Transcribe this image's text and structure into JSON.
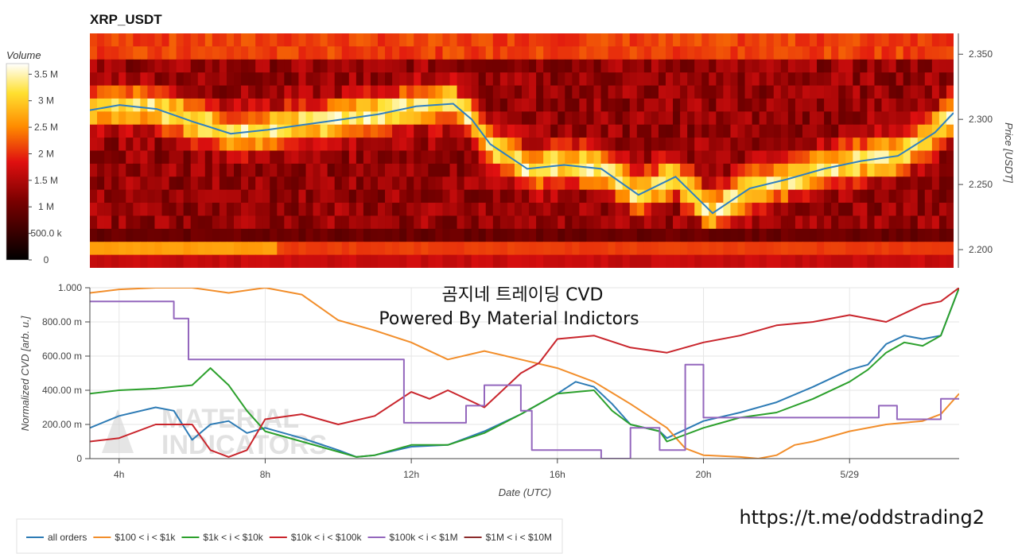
{
  "chart_data": [
    {
      "type": "heatmap",
      "title": "XRP_USDT",
      "ylabel": "Price [USDT]",
      "yticks": [
        "2.200",
        "2.250",
        "2.300",
        "2.350"
      ],
      "ylim": [
        2.186,
        2.366
      ],
      "colorbar": {
        "title": "Volume",
        "ticks": [
          "0",
          "500.0 k",
          "1 M",
          "1.5 M",
          "2 M",
          "2.5 M",
          "3 M",
          "3.5 M"
        ],
        "range": [
          0,
          3700000
        ]
      },
      "price_line": {
        "color": "#2f7fc0",
        "x_hours": [
          3,
          4,
          5,
          6,
          7,
          8,
          9,
          10,
          11,
          12,
          13,
          13.5,
          14,
          15,
          16,
          17,
          18,
          19,
          19.5,
          20,
          21,
          22,
          23,
          24,
          25,
          26,
          26.5
        ],
        "values": [
          2.306,
          2.311,
          2.308,
          2.298,
          2.289,
          2.292,
          2.296,
          2.3,
          2.304,
          2.31,
          2.312,
          2.3,
          2.281,
          2.262,
          2.265,
          2.262,
          2.242,
          2.256,
          2.242,
          2.228,
          2.247,
          2.254,
          2.262,
          2.268,
          2.272,
          2.29,
          2.305
        ]
      }
    },
    {
      "type": "line",
      "xlabel": "Date (UTC)",
      "ylabel": "Normalized CVD [arb. u.]",
      "xticks": [
        "4h",
        "8h",
        "12h",
        "16h",
        "20h",
        "5/29"
      ],
      "xtick_hours": [
        4,
        8,
        12,
        16,
        20,
        24
      ],
      "xlim": [
        3.2,
        27.0
      ],
      "yticks": [
        "0",
        "200.00 m",
        "400.00 m",
        "600.00 m",
        "800.00 m",
        "1.000"
      ],
      "ylim": [
        0,
        1
      ],
      "series": [
        {
          "name": "all orders",
          "color": "#2d7bb5",
          "step": false,
          "x": [
            3.2,
            4,
            5,
            5.5,
            6,
            6.5,
            7,
            7.5,
            8,
            9,
            10,
            10.5,
            11,
            12,
            13,
            14,
            15,
            15.5,
            16,
            16.5,
            17,
            17.5,
            18,
            18.8,
            19,
            20,
            21,
            22,
            23,
            24,
            24.5,
            25,
            25.5,
            26,
            26.5,
            27.0
          ],
          "values": [
            0.18,
            0.25,
            0.3,
            0.28,
            0.11,
            0.2,
            0.22,
            0.15,
            0.18,
            0.12,
            0.05,
            0.01,
            0.02,
            0.07,
            0.08,
            0.16,
            0.26,
            0.32,
            0.38,
            0.45,
            0.42,
            0.32,
            0.2,
            0.16,
            0.12,
            0.22,
            0.27,
            0.33,
            0.42,
            0.52,
            0.55,
            0.67,
            0.72,
            0.7,
            0.72,
            1.0
          ]
        },
        {
          "name": "$100 < i < $1k",
          "color": "#f28e2b",
          "step": false,
          "x": [
            3.2,
            4,
            5,
            6,
            7,
            8,
            9,
            10,
            11,
            12,
            13,
            14,
            15,
            16,
            17,
            18,
            19,
            19.5,
            20,
            21,
            21.5,
            22,
            22.5,
            23,
            24,
            25,
            26,
            26.5,
            27.0
          ],
          "values": [
            0.97,
            0.99,
            1.0,
            1.0,
            0.97,
            1.0,
            0.96,
            0.81,
            0.75,
            0.68,
            0.58,
            0.63,
            0.58,
            0.53,
            0.45,
            0.32,
            0.18,
            0.06,
            0.02,
            0.01,
            0.0,
            0.02,
            0.08,
            0.1,
            0.16,
            0.2,
            0.22,
            0.26,
            0.38
          ]
        },
        {
          "name": "$1k < i < $10k",
          "color": "#2ca02c",
          "step": false,
          "x": [
            3.2,
            4,
            5,
            6,
            6.5,
            7,
            7.5,
            8,
            9,
            10,
            10.5,
            11,
            12,
            13,
            14,
            15,
            16,
            17,
            17.5,
            18,
            18.8,
            19,
            20,
            21,
            22,
            23,
            24,
            24.5,
            25,
            25.5,
            26,
            26.5,
            27.0
          ],
          "values": [
            0.38,
            0.4,
            0.41,
            0.43,
            0.53,
            0.43,
            0.28,
            0.16,
            0.1,
            0.04,
            0.01,
            0.02,
            0.08,
            0.08,
            0.15,
            0.26,
            0.38,
            0.4,
            0.28,
            0.2,
            0.16,
            0.1,
            0.18,
            0.24,
            0.27,
            0.35,
            0.45,
            0.52,
            0.62,
            0.68,
            0.66,
            0.72,
            1.0
          ]
        },
        {
          "name": "$10k < i < $100k",
          "color": "#c9252c",
          "step": false,
          "x": [
            3.2,
            4,
            5,
            6,
            6.5,
            7,
            7.5,
            8,
            9,
            10,
            11,
            12,
            12.5,
            13,
            14,
            15,
            15.5,
            16,
            17,
            18,
            19,
            20,
            21,
            22,
            23,
            24,
            25,
            26,
            26.5,
            27.0
          ],
          "values": [
            0.1,
            0.12,
            0.2,
            0.2,
            0.05,
            0.01,
            0.05,
            0.23,
            0.26,
            0.2,
            0.25,
            0.39,
            0.35,
            0.4,
            0.3,
            0.5,
            0.56,
            0.7,
            0.72,
            0.65,
            0.62,
            0.68,
            0.72,
            0.78,
            0.8,
            0.84,
            0.8,
            0.9,
            0.92,
            1.0
          ]
        },
        {
          "name": "$100k < i < $1M",
          "color": "#9467bd",
          "step": true,
          "x": [
            3.2,
            5.5,
            5.9,
            11.8,
            13.5,
            14.0,
            15.0,
            15.3,
            17.2,
            18.0,
            18.8,
            19.5,
            20.0,
            24.3,
            24.8,
            25.3,
            26.5,
            27.0
          ],
          "values": [
            0.92,
            0.82,
            0.58,
            0.21,
            0.31,
            0.43,
            0.28,
            0.05,
            0.0,
            0.18,
            0.05,
            0.55,
            0.24,
            0.24,
            0.31,
            0.23,
            0.35,
            0.35
          ]
        },
        {
          "name": "$1M < i < $10M",
          "color": "#8c2c2c",
          "step": false,
          "x": [],
          "values": []
        }
      ]
    }
  ],
  "overlay": {
    "line1": "곰지네 트레이딩 CVD",
    "line2": "Powered By Material Indictors"
  },
  "watermark": {
    "line1": "MATERIAL",
    "line2": "INDICATORS"
  },
  "footer_url": "https://t.me/oddstrading2"
}
